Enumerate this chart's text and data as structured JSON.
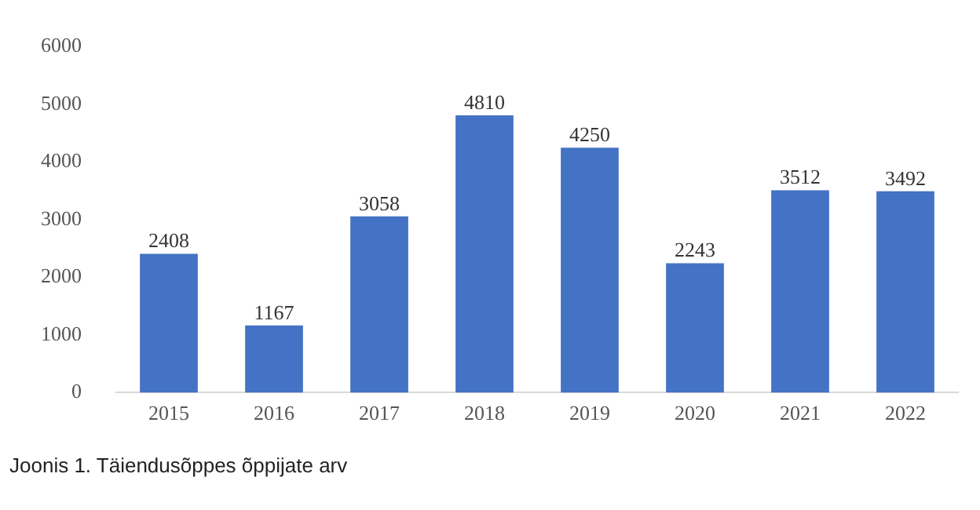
{
  "chart_data": {
    "type": "bar",
    "categories": [
      "2015",
      "2016",
      "2017",
      "2018",
      "2019",
      "2020",
      "2021",
      "2022"
    ],
    "values": [
      2408,
      1167,
      3058,
      4810,
      4250,
      2243,
      3512,
      3492
    ],
    "color": "#4472c4",
    "ylim": [
      0,
      6000
    ],
    "yticks": [
      0,
      1000,
      2000,
      3000,
      4000,
      5000,
      6000
    ],
    "grid": false,
    "legend": false,
    "data_labels": true,
    "annotations": [
      "Joonis 1. Täiendusõppes õppijate arv"
    ]
  }
}
